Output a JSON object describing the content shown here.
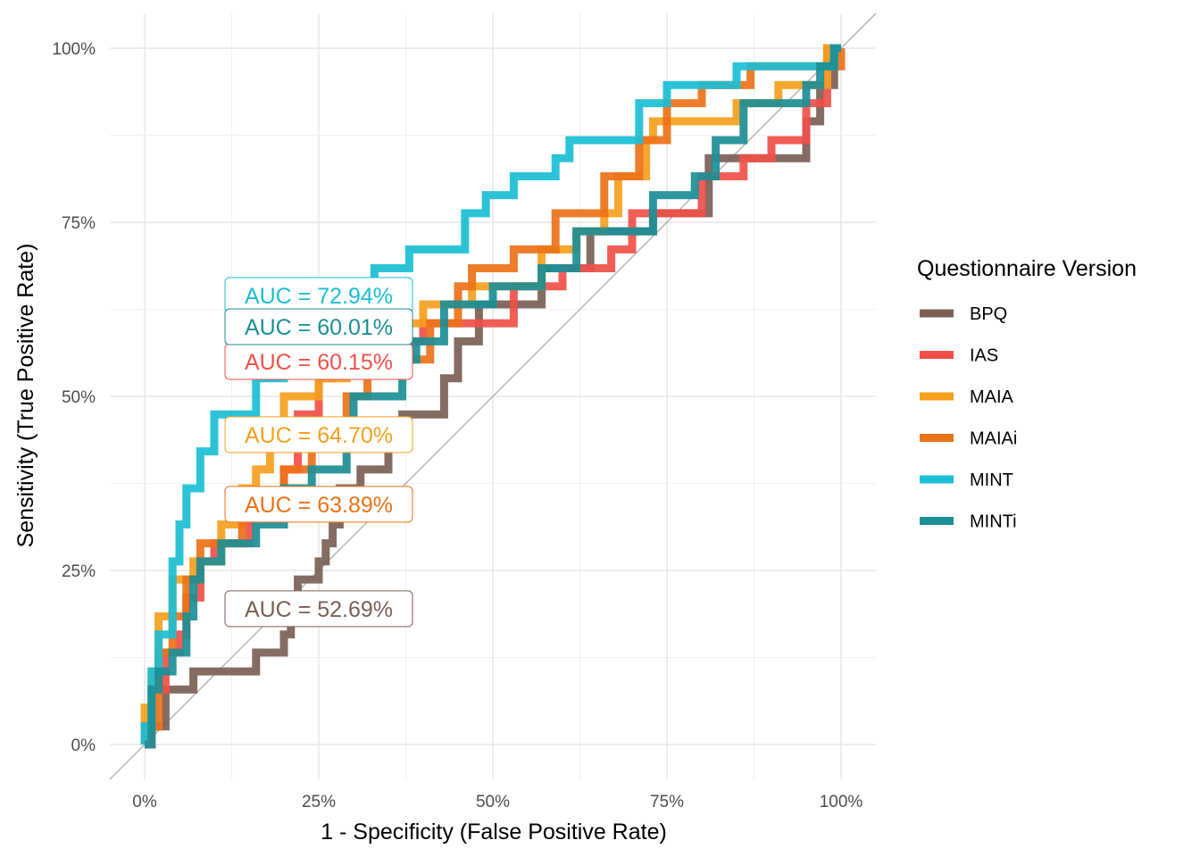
{
  "chart_data": {
    "type": "line",
    "subtype": "roc-step",
    "xlabel": "1 - Specificity (False Positive Rate)",
    "ylabel": "Sensitivity (True Positive Rate)",
    "xlim": [
      -0.05,
      1.05
    ],
    "ylim": [
      -0.05,
      1.05
    ],
    "x_ticks": [
      0,
      0.25,
      0.5,
      0.75,
      1.0
    ],
    "x_tick_labels": [
      "0%",
      "25%",
      "50%",
      "75%",
      "100%"
    ],
    "y_ticks": [
      0,
      0.25,
      0.5,
      0.75,
      1.0
    ],
    "y_tick_labels": [
      "0%",
      "25%",
      "50%",
      "75%",
      "100%"
    ],
    "grid": true,
    "diagonal_reference": true,
    "legend": {
      "title": "Questionnaire Version",
      "placement": "right"
    },
    "series": [
      {
        "name": "BPQ",
        "color": "#7B5F55",
        "auc_label": "AUC = 52.69%",
        "auc_label_pos": [
          0.25,
          0.195
        ],
        "points": [
          [
            0,
            0
          ],
          [
            0.01,
            0
          ],
          [
            0.01,
            0.026
          ],
          [
            0.03,
            0.026
          ],
          [
            0.03,
            0.079
          ],
          [
            0.07,
            0.079
          ],
          [
            0.07,
            0.105
          ],
          [
            0.16,
            0.105
          ],
          [
            0.16,
            0.132
          ],
          [
            0.2,
            0.132
          ],
          [
            0.2,
            0.158
          ],
          [
            0.21,
            0.158
          ],
          [
            0.21,
            0.184
          ],
          [
            0.22,
            0.184
          ],
          [
            0.22,
            0.237
          ],
          [
            0.25,
            0.237
          ],
          [
            0.25,
            0.263
          ],
          [
            0.26,
            0.263
          ],
          [
            0.26,
            0.289
          ],
          [
            0.27,
            0.289
          ],
          [
            0.27,
            0.316
          ],
          [
            0.28,
            0.316
          ],
          [
            0.28,
            0.368
          ],
          [
            0.31,
            0.368
          ],
          [
            0.31,
            0.395
          ],
          [
            0.35,
            0.395
          ],
          [
            0.35,
            0.447
          ],
          [
            0.37,
            0.447
          ],
          [
            0.37,
            0.474
          ],
          [
            0.43,
            0.474
          ],
          [
            0.43,
            0.526
          ],
          [
            0.45,
            0.526
          ],
          [
            0.45,
            0.579
          ],
          [
            0.48,
            0.579
          ],
          [
            0.48,
            0.632
          ],
          [
            0.57,
            0.632
          ],
          [
            0.57,
            0.684
          ],
          [
            0.64,
            0.684
          ],
          [
            0.64,
            0.737
          ],
          [
            0.73,
            0.737
          ],
          [
            0.73,
            0.763
          ],
          [
            0.81,
            0.763
          ],
          [
            0.81,
            0.842
          ],
          [
            0.95,
            0.842
          ],
          [
            0.95,
            0.895
          ],
          [
            0.97,
            0.895
          ],
          [
            0.97,
            0.947
          ],
          [
            0.99,
            0.947
          ],
          [
            0.99,
            1.0
          ],
          [
            1.0,
            1.0
          ]
        ]
      },
      {
        "name": "IAS",
        "color": "#F05049",
        "auc_label": "AUC = 60.15%",
        "auc_label_pos": [
          0.25,
          0.55
        ],
        "points": [
          [
            0,
            0
          ],
          [
            0.01,
            0
          ],
          [
            0.01,
            0.079
          ],
          [
            0.03,
            0.079
          ],
          [
            0.03,
            0.132
          ],
          [
            0.05,
            0.132
          ],
          [
            0.05,
            0.158
          ],
          [
            0.06,
            0.158
          ],
          [
            0.06,
            0.211
          ],
          [
            0.08,
            0.211
          ],
          [
            0.08,
            0.263
          ],
          [
            0.1,
            0.263
          ],
          [
            0.1,
            0.289
          ],
          [
            0.15,
            0.289
          ],
          [
            0.15,
            0.342
          ],
          [
            0.2,
            0.342
          ],
          [
            0.2,
            0.395
          ],
          [
            0.22,
            0.395
          ],
          [
            0.22,
            0.474
          ],
          [
            0.25,
            0.474
          ],
          [
            0.25,
            0.526
          ],
          [
            0.27,
            0.526
          ],
          [
            0.27,
            0.579
          ],
          [
            0.4,
            0.579
          ],
          [
            0.4,
            0.605
          ],
          [
            0.53,
            0.605
          ],
          [
            0.53,
            0.658
          ],
          [
            0.6,
            0.658
          ],
          [
            0.6,
            0.684
          ],
          [
            0.67,
            0.684
          ],
          [
            0.67,
            0.711
          ],
          [
            0.7,
            0.711
          ],
          [
            0.7,
            0.763
          ],
          [
            0.8,
            0.763
          ],
          [
            0.8,
            0.816
          ],
          [
            0.86,
            0.816
          ],
          [
            0.86,
            0.842
          ],
          [
            0.9,
            0.842
          ],
          [
            0.9,
            0.868
          ],
          [
            0.95,
            0.868
          ],
          [
            0.95,
            0.921
          ],
          [
            0.98,
            0.921
          ],
          [
            0.98,
            1.0
          ],
          [
            1.0,
            1.0
          ]
        ]
      },
      {
        "name": "MAIA",
        "color": "#F5A01D",
        "auc_label": "AUC = 64.70%",
        "auc_label_pos": [
          0.25,
          0.445
        ],
        "points": [
          [
            0,
            0
          ],
          [
            0,
            0.053
          ],
          [
            0.01,
            0.053
          ],
          [
            0.01,
            0.105
          ],
          [
            0.02,
            0.105
          ],
          [
            0.02,
            0.184
          ],
          [
            0.04,
            0.184
          ],
          [
            0.04,
            0.237
          ],
          [
            0.07,
            0.237
          ],
          [
            0.07,
            0.263
          ],
          [
            0.11,
            0.263
          ],
          [
            0.11,
            0.316
          ],
          [
            0.14,
            0.316
          ],
          [
            0.14,
            0.368
          ],
          [
            0.16,
            0.368
          ],
          [
            0.16,
            0.395
          ],
          [
            0.18,
            0.395
          ],
          [
            0.18,
            0.447
          ],
          [
            0.2,
            0.447
          ],
          [
            0.2,
            0.5
          ],
          [
            0.25,
            0.5
          ],
          [
            0.25,
            0.526
          ],
          [
            0.29,
            0.526
          ],
          [
            0.29,
            0.553
          ],
          [
            0.36,
            0.553
          ],
          [
            0.36,
            0.605
          ],
          [
            0.4,
            0.605
          ],
          [
            0.4,
            0.632
          ],
          [
            0.47,
            0.632
          ],
          [
            0.47,
            0.658
          ],
          [
            0.57,
            0.658
          ],
          [
            0.57,
            0.711
          ],
          [
            0.62,
            0.711
          ],
          [
            0.62,
            0.737
          ],
          [
            0.66,
            0.737
          ],
          [
            0.66,
            0.763
          ],
          [
            0.68,
            0.763
          ],
          [
            0.68,
            0.816
          ],
          [
            0.72,
            0.816
          ],
          [
            0.72,
            0.868
          ],
          [
            0.73,
            0.868
          ],
          [
            0.73,
            0.895
          ],
          [
            0.85,
            0.895
          ],
          [
            0.85,
            0.921
          ],
          [
            0.91,
            0.921
          ],
          [
            0.91,
            0.947
          ],
          [
            0.98,
            0.947
          ],
          [
            0.98,
            1.0
          ],
          [
            1.0,
            1.0
          ]
        ]
      },
      {
        "name": "MAIAi",
        "color": "#EC7218",
        "auc_label": "AUC = 63.89%",
        "auc_label_pos": [
          0.25,
          0.345
        ],
        "points": [
          [
            0,
            0
          ],
          [
            0,
            0.026
          ],
          [
            0.02,
            0.026
          ],
          [
            0.02,
            0.132
          ],
          [
            0.04,
            0.132
          ],
          [
            0.04,
            0.184
          ],
          [
            0.06,
            0.184
          ],
          [
            0.06,
            0.237
          ],
          [
            0.08,
            0.237
          ],
          [
            0.08,
            0.289
          ],
          [
            0.14,
            0.289
          ],
          [
            0.14,
            0.342
          ],
          [
            0.2,
            0.342
          ],
          [
            0.2,
            0.395
          ],
          [
            0.24,
            0.395
          ],
          [
            0.24,
            0.447
          ],
          [
            0.29,
            0.447
          ],
          [
            0.29,
            0.5
          ],
          [
            0.32,
            0.5
          ],
          [
            0.32,
            0.553
          ],
          [
            0.41,
            0.553
          ],
          [
            0.41,
            0.605
          ],
          [
            0.45,
            0.605
          ],
          [
            0.45,
            0.658
          ],
          [
            0.47,
            0.658
          ],
          [
            0.47,
            0.684
          ],
          [
            0.53,
            0.684
          ],
          [
            0.53,
            0.711
          ],
          [
            0.59,
            0.711
          ],
          [
            0.59,
            0.763
          ],
          [
            0.66,
            0.763
          ],
          [
            0.66,
            0.816
          ],
          [
            0.71,
            0.816
          ],
          [
            0.71,
            0.868
          ],
          [
            0.75,
            0.868
          ],
          [
            0.75,
            0.921
          ],
          [
            0.8,
            0.921
          ],
          [
            0.8,
            0.947
          ],
          [
            0.87,
            0.947
          ],
          [
            0.87,
            0.974
          ],
          [
            1.0,
            0.974
          ],
          [
            1.0,
            1.0
          ]
        ]
      },
      {
        "name": "MINT",
        "color": "#1BBED4",
        "auc_label": "AUC = 72.94%",
        "auc_label_pos": [
          0.25,
          0.645
        ],
        "points": [
          [
            0,
            0
          ],
          [
            0,
            0.026
          ],
          [
            0.01,
            0.026
          ],
          [
            0.01,
            0.105
          ],
          [
            0.02,
            0.105
          ],
          [
            0.02,
            0.158
          ],
          [
            0.04,
            0.158
          ],
          [
            0.04,
            0.263
          ],
          [
            0.05,
            0.263
          ],
          [
            0.05,
            0.316
          ],
          [
            0.06,
            0.316
          ],
          [
            0.06,
            0.368
          ],
          [
            0.08,
            0.368
          ],
          [
            0.08,
            0.421
          ],
          [
            0.1,
            0.421
          ],
          [
            0.1,
            0.474
          ],
          [
            0.16,
            0.474
          ],
          [
            0.16,
            0.526
          ],
          [
            0.2,
            0.526
          ],
          [
            0.2,
            0.553
          ],
          [
            0.24,
            0.553
          ],
          [
            0.24,
            0.605
          ],
          [
            0.3,
            0.605
          ],
          [
            0.3,
            0.658
          ],
          [
            0.33,
            0.658
          ],
          [
            0.33,
            0.684
          ],
          [
            0.38,
            0.684
          ],
          [
            0.38,
            0.711
          ],
          [
            0.46,
            0.711
          ],
          [
            0.46,
            0.763
          ],
          [
            0.49,
            0.763
          ],
          [
            0.49,
            0.789
          ],
          [
            0.53,
            0.789
          ],
          [
            0.53,
            0.816
          ],
          [
            0.59,
            0.816
          ],
          [
            0.59,
            0.842
          ],
          [
            0.61,
            0.842
          ],
          [
            0.61,
            0.868
          ],
          [
            0.71,
            0.868
          ],
          [
            0.71,
            0.921
          ],
          [
            0.75,
            0.921
          ],
          [
            0.75,
            0.947
          ],
          [
            0.85,
            0.947
          ],
          [
            0.85,
            0.974
          ],
          [
            0.99,
            0.974
          ],
          [
            0.99,
            1.0
          ],
          [
            1.0,
            1.0
          ]
        ]
      },
      {
        "name": "MINTi",
        "color": "#1C8E96",
        "auc_label": "AUC = 60.01%",
        "auc_label_pos": [
          0.25,
          0.6
        ],
        "points": [
          [
            0,
            0
          ],
          [
            0.01,
            0
          ],
          [
            0.01,
            0.079
          ],
          [
            0.02,
            0.079
          ],
          [
            0.02,
            0.105
          ],
          [
            0.04,
            0.105
          ],
          [
            0.04,
            0.132
          ],
          [
            0.06,
            0.132
          ],
          [
            0.06,
            0.184
          ],
          [
            0.07,
            0.184
          ],
          [
            0.07,
            0.237
          ],
          [
            0.08,
            0.237
          ],
          [
            0.08,
            0.263
          ],
          [
            0.11,
            0.263
          ],
          [
            0.11,
            0.289
          ],
          [
            0.16,
            0.289
          ],
          [
            0.16,
            0.316
          ],
          [
            0.2,
            0.316
          ],
          [
            0.2,
            0.368
          ],
          [
            0.24,
            0.368
          ],
          [
            0.24,
            0.395
          ],
          [
            0.29,
            0.395
          ],
          [
            0.29,
            0.447
          ],
          [
            0.3,
            0.447
          ],
          [
            0.3,
            0.5
          ],
          [
            0.37,
            0.5
          ],
          [
            0.37,
            0.553
          ],
          [
            0.39,
            0.553
          ],
          [
            0.39,
            0.579
          ],
          [
            0.43,
            0.579
          ],
          [
            0.43,
            0.632
          ],
          [
            0.5,
            0.632
          ],
          [
            0.5,
            0.658
          ],
          [
            0.57,
            0.658
          ],
          [
            0.57,
            0.684
          ],
          [
            0.62,
            0.684
          ],
          [
            0.62,
            0.737
          ],
          [
            0.73,
            0.737
          ],
          [
            0.73,
            0.789
          ],
          [
            0.79,
            0.789
          ],
          [
            0.79,
            0.816
          ],
          [
            0.82,
            0.816
          ],
          [
            0.82,
            0.868
          ],
          [
            0.86,
            0.868
          ],
          [
            0.86,
            0.921
          ],
          [
            0.95,
            0.921
          ],
          [
            0.95,
            0.947
          ],
          [
            0.97,
            0.947
          ],
          [
            0.97,
            0.974
          ],
          [
            0.99,
            0.974
          ],
          [
            0.99,
            1.0
          ],
          [
            1.0,
            1.0
          ]
        ]
      }
    ]
  }
}
